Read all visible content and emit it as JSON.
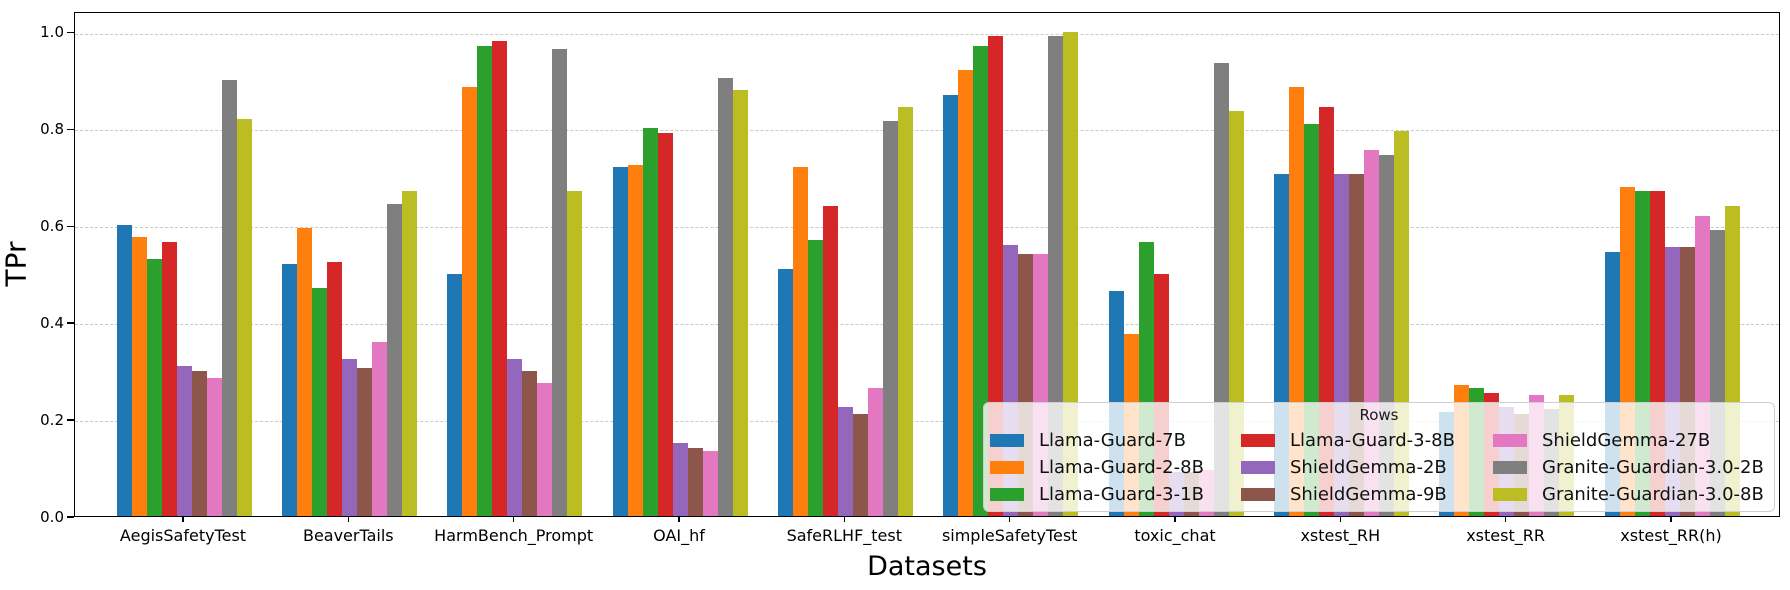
{
  "figure": {
    "ylabel": "TPr",
    "xlabel": "Datasets",
    "legend_title": "Rows"
  },
  "chart_data": {
    "type": "bar",
    "title": "",
    "xlabel": "Datasets",
    "ylabel": "TPr",
    "ylim": [
      0.0,
      1.04
    ],
    "yticks": [
      0.0,
      0.2,
      0.4,
      0.6,
      0.8,
      1.0
    ],
    "grid": "horizontal dashed gridlines at each y tick",
    "legend_title": "Rows",
    "legend_position": "lower right, semi-transparent, 3 columns",
    "categories": [
      "AegisSafetyTest",
      "BeaverTails",
      "HarmBench_Prompt",
      "OAI_hf",
      "SafeRLHF_test",
      "simpleSafetyTest",
      "toxic_chat",
      "xstest_RH",
      "xstest_RR",
      "xstest_RR(h)"
    ],
    "series": [
      {
        "name": "Llama-Guard-7B",
        "color": "#1f77b4",
        "values": [
          0.6,
          0.52,
          0.5,
          0.72,
          0.51,
          0.87,
          0.465,
          0.705,
          0.215,
          0.545
        ]
      },
      {
        "name": "Llama-Guard-2-8B",
        "color": "#ff7f0e",
        "values": [
          0.575,
          0.595,
          0.885,
          0.725,
          0.72,
          0.92,
          0.375,
          0.885,
          0.27,
          0.68
        ]
      },
      {
        "name": "Llama-Guard-3-1B",
        "color": "#2ca02c",
        "values": [
          0.53,
          0.47,
          0.97,
          0.8,
          0.57,
          0.97,
          0.565,
          0.81,
          0.265,
          0.67
        ]
      },
      {
        "name": "Llama-Guard-3-8B",
        "color": "#d62728",
        "values": [
          0.565,
          0.525,
          0.98,
          0.79,
          0.64,
          0.99,
          0.5,
          0.845,
          0.253,
          0.67
        ]
      },
      {
        "name": "ShieldGemma-2B",
        "color": "#9467bd",
        "values": [
          0.31,
          0.325,
          0.325,
          0.15,
          0.225,
          0.56,
          0.09,
          0.705,
          0.225,
          0.555
        ]
      },
      {
        "name": "ShieldGemma-9B",
        "color": "#8c564b",
        "values": [
          0.3,
          0.305,
          0.3,
          0.14,
          0.21,
          0.54,
          0.09,
          0.705,
          0.21,
          0.555
        ]
      },
      {
        "name": "ShieldGemma-27B",
        "color": "#e377c2",
        "values": [
          0.285,
          0.36,
          0.275,
          0.135,
          0.265,
          0.54,
          0.095,
          0.755,
          0.25,
          0.62
        ]
      },
      {
        "name": "Granite-Guardian-3.0-2B",
        "color": "#7f7f7f",
        "values": [
          0.9,
          0.645,
          0.965,
          0.905,
          0.815,
          0.99,
          0.935,
          0.745,
          0.22,
          0.59
        ]
      },
      {
        "name": "Granite-Guardian-3.0-8B",
        "color": "#bcbd22",
        "values": [
          0.82,
          0.67,
          0.67,
          0.88,
          0.845,
          1.0,
          0.835,
          0.795,
          0.25,
          0.64
        ]
      }
    ]
  }
}
